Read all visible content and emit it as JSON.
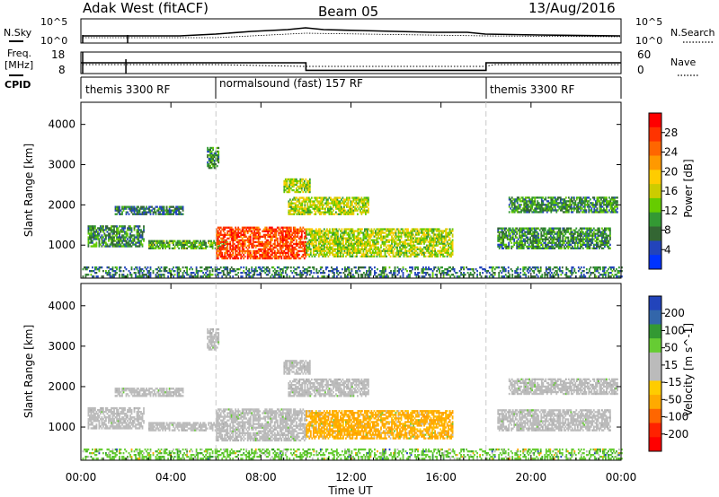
{
  "chart_data": {
    "type": "heatmap",
    "title": "Adak West (fitACF)",
    "beam": "Beam 05",
    "date": "13/Aug/2016",
    "xlabel": "Time UT",
    "x_ticks": [
      "00:00",
      "04:00",
      "08:00",
      "12:00",
      "16:00",
      "20:00",
      "00:00"
    ],
    "x_hours": [
      0,
      4,
      8,
      12,
      16,
      20,
      24
    ],
    "xlim": [
      0,
      24
    ],
    "mode_changes_hours": [
      6,
      18
    ],
    "panels": {
      "nsky": {
        "label": "N.Sky",
        "right_label": "N.Search",
        "left_ticks": [
          "10^5",
          "10^0"
        ],
        "right_ticks": [
          "10^5",
          "10^0"
        ]
      },
      "freq": {
        "label": "Freq.",
        "unit": "[MHz]",
        "right_label": "Nave",
        "left_ticks": [
          "18",
          "8"
        ],
        "right_ticks": [
          "60",
          "0"
        ],
        "segments": [
          {
            "from": 0,
            "to": 6,
            "freq": 13
          },
          {
            "from": 6,
            "to": 10,
            "freq": 13
          },
          {
            "from": 10,
            "to": 18,
            "freq": 9.5
          },
          {
            "from": 18,
            "to": 24,
            "freq": 13
          }
        ]
      },
      "cpid": {
        "label": "CPID",
        "programs": [
          {
            "name": "themis 3300 RF",
            "from": 0
          },
          {
            "name": "normalsound (fast) 157 RF",
            "from": 6
          },
          {
            "name": "themis 3300 RF",
            "from": 18
          }
        ]
      },
      "power": {
        "ylabel": "Slant Range [km]",
        "y_ticks": [
          1000,
          2000,
          3000,
          4000
        ],
        "ylim": [
          180,
          4550
        ],
        "colorbar_label": "Power [dB]",
        "colorbar_ticks": [
          "28",
          "24",
          "20",
          "16",
          "12",
          "8",
          "4"
        ],
        "colors": [
          "#ff0000",
          "#ff3300",
          "#ff6600",
          "#ff9900",
          "#ffcc00",
          "#cccc00",
          "#66cc00",
          "#339933",
          "#336633",
          "#2244bb",
          "#0033ff"
        ]
      },
      "velocity": {
        "ylabel": "Slant Range [km]",
        "y_ticks": [
          1000,
          2000,
          3000,
          4000
        ],
        "ylim": [
          180,
          4550
        ],
        "colorbar_label": "Velocity [m s^-1]",
        "colorbar_ticks": [
          "200",
          "100",
          "50",
          "15",
          "-15",
          "-50",
          "-100",
          "-200"
        ],
        "colors": [
          "#2244bb",
          "#3366aa",
          "#339933",
          "#66cc33",
          "#bbbbbb",
          "#bbbbbb",
          "#ffcc00",
          "#ffaa00",
          "#ff6600",
          "#ff2200",
          "#ff0000"
        ]
      }
    },
    "echo_regions": [
      {
        "t0": 0.3,
        "t1": 2.8,
        "r0": 950,
        "r1": 1450,
        "power": 8,
        "vel": "gray"
      },
      {
        "t0": 1.5,
        "t1": 4.5,
        "r0": 1750,
        "r1": 1950,
        "power": 6,
        "vel": "gray"
      },
      {
        "t0": 3.0,
        "t1": 6.5,
        "r0": 900,
        "r1": 1100,
        "power": 10,
        "vel": "gray"
      },
      {
        "t0": 5.6,
        "t1": 6.1,
        "r0": 2900,
        "r1": 3400,
        "power": 8,
        "vel": "gray"
      },
      {
        "t0": 6.0,
        "t1": 10.0,
        "r0": 650,
        "r1": 1450,
        "power": 26,
        "vel": "gray"
      },
      {
        "t0": 10.0,
        "t1": 16.5,
        "r0": 700,
        "r1": 1400,
        "power": 14,
        "vel": "orange"
      },
      {
        "t0": 9.2,
        "t1": 12.8,
        "r0": 1750,
        "r1": 2200,
        "power": 14,
        "vel": "gray"
      },
      {
        "t0": 9.0,
        "t1": 10.2,
        "r0": 2300,
        "r1": 2650,
        "power": 14,
        "vel": "gray"
      },
      {
        "t0": 0.0,
        "t1": 24.0,
        "r0": 200,
        "r1": 450,
        "power": 6,
        "vel": "green"
      },
      {
        "t0": 18.5,
        "t1": 23.5,
        "r0": 900,
        "r1": 1400,
        "power": 8,
        "vel": "gray"
      },
      {
        "t0": 19.0,
        "t1": 23.8,
        "r0": 1800,
        "r1": 2200,
        "power": 8,
        "vel": "gray"
      }
    ]
  }
}
